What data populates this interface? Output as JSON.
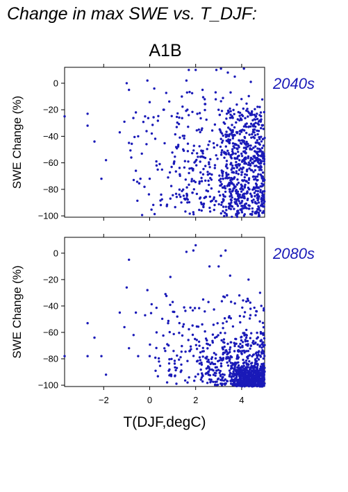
{
  "title": "Change in max SWE vs. T_DJF:",
  "scenario": "A1B",
  "colors": {
    "points": "#1a1ab8",
    "period_label": "#1a1ab8",
    "axes": "#000000"
  },
  "chart_data": [
    {
      "type": "scatter",
      "panel_label": "2040s",
      "ylabel": "SWE Change (%)",
      "xlabel": "",
      "xlim": [
        -3.7,
        5.0
      ],
      "ylim": [
        -101,
        12
      ],
      "xticks": [
        -2,
        0,
        2,
        4
      ],
      "yticks": [
        0,
        -20,
        -40,
        -60,
        -80,
        -100
      ],
      "x_ticklabels_shown": false,
      "cloud": [
        {
          "x": [
            -1.0,
            5.0
          ],
          "y": [
            -5,
            -100
          ],
          "n": 260
        },
        {
          "x": [
            1.0,
            5.0
          ],
          "y": [
            -15,
            -95
          ],
          "n": 260
        },
        {
          "x": [
            3.0,
            5.0
          ],
          "y": [
            -20,
            -101
          ],
          "n": 380
        }
      ],
      "points": [
        {
          "x": -3.7,
          "y": -25
        },
        {
          "x": -2.7,
          "y": -23
        },
        {
          "x": -2.7,
          "y": -32
        },
        {
          "x": -2.4,
          "y": -44
        },
        {
          "x": -2.1,
          "y": -72
        },
        {
          "x": -1.9,
          "y": -58
        },
        {
          "x": -1.3,
          "y": -37
        },
        {
          "x": -1.1,
          "y": -29
        },
        {
          "x": -1.0,
          "y": 0
        },
        {
          "x": -0.9,
          "y": -5
        },
        {
          "x": -0.9,
          "y": -45
        },
        {
          "x": -0.8,
          "y": -56
        },
        {
          "x": -0.6,
          "y": -22
        },
        {
          "x": -0.5,
          "y": -40
        },
        {
          "x": -0.4,
          "y": -72
        },
        {
          "x": -0.2,
          "y": -25
        },
        {
          "x": -0.1,
          "y": 2
        },
        {
          "x": 0.0,
          "y": -72
        },
        {
          "x": 0.2,
          "y": -4
        },
        {
          "x": 0.3,
          "y": -62
        },
        {
          "x": 0.5,
          "y": -84
        },
        {
          "x": 0.8,
          "y": -71
        },
        {
          "x": 0.9,
          "y": -87
        },
        {
          "x": 1.4,
          "y": -10
        },
        {
          "x": 1.6,
          "y": 2
        },
        {
          "x": 1.7,
          "y": 10
        },
        {
          "x": 2.0,
          "y": 10
        },
        {
          "x": 2.3,
          "y": -5
        },
        {
          "x": 2.9,
          "y": 10
        },
        {
          "x": 3.1,
          "y": 11
        },
        {
          "x": 3.4,
          "y": 8
        },
        {
          "x": 3.7,
          "y": 5
        },
        {
          "x": 4.1,
          "y": 11
        },
        {
          "x": 4.4,
          "y": 1
        }
      ]
    },
    {
      "type": "scatter",
      "panel_label": "2080s",
      "ylabel": "SWE Change (%)",
      "xlabel": "T(DJF,degC)",
      "xlim": [
        -3.7,
        5.0
      ],
      "ylim": [
        -101,
        12
      ],
      "xticks": [
        -2,
        0,
        2,
        4
      ],
      "yticks": [
        0,
        -20,
        -40,
        -60,
        -80,
        -100
      ],
      "x_ticklabels_shown": true,
      "cloud": [
        {
          "x": [
            0.0,
            5.0
          ],
          "y": [
            -30,
            -100
          ],
          "n": 260
        },
        {
          "x": [
            2.0,
            5.0
          ],
          "y": [
            -60,
            -100
          ],
          "n": 300
        },
        {
          "x": [
            3.5,
            5.0
          ],
          "y": [
            -85,
            -101
          ],
          "n": 420
        }
      ],
      "points": [
        {
          "x": -3.7,
          "y": -78
        },
        {
          "x": -2.7,
          "y": -53
        },
        {
          "x": -2.7,
          "y": -78
        },
        {
          "x": -2.4,
          "y": -64
        },
        {
          "x": -2.1,
          "y": -78
        },
        {
          "x": -1.9,
          "y": -92
        },
        {
          "x": -1.3,
          "y": -45
        },
        {
          "x": -1.1,
          "y": -56
        },
        {
          "x": -1.0,
          "y": -26
        },
        {
          "x": -0.9,
          "y": -5
        },
        {
          "x": -0.9,
          "y": -72
        },
        {
          "x": -0.7,
          "y": -62
        },
        {
          "x": -0.6,
          "y": -45
        },
        {
          "x": -0.5,
          "y": -78
        },
        {
          "x": -0.2,
          "y": -47
        },
        {
          "x": -0.1,
          "y": -28
        },
        {
          "x": 0.0,
          "y": -78
        },
        {
          "x": 0.3,
          "y": -60
        },
        {
          "x": 0.8,
          "y": -53
        },
        {
          "x": 0.9,
          "y": -18
        },
        {
          "x": 1.0,
          "y": -37
        },
        {
          "x": 1.2,
          "y": -48
        },
        {
          "x": 1.6,
          "y": 1
        },
        {
          "x": 1.9,
          "y": 2
        },
        {
          "x": 2.0,
          "y": 6
        },
        {
          "x": 2.6,
          "y": -10
        },
        {
          "x": 3.0,
          "y": -10
        },
        {
          "x": 3.1,
          "y": -2
        },
        {
          "x": 3.3,
          "y": 2
        },
        {
          "x": 3.5,
          "y": -17
        },
        {
          "x": 3.9,
          "y": -32
        },
        {
          "x": 4.1,
          "y": -48
        },
        {
          "x": 4.3,
          "y": -20
        },
        {
          "x": 4.8,
          "y": -30
        }
      ]
    }
  ]
}
